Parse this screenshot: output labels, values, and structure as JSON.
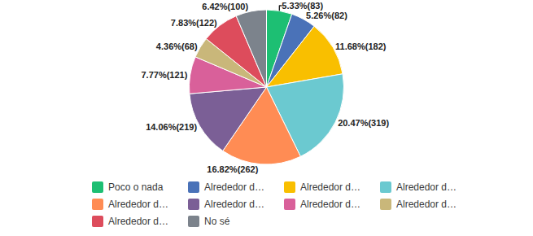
{
  "chart_data": {
    "type": "pie",
    "categories": [
      "Poco o nada",
      "Alrededor d…",
      "Alrededor d…",
      "Alrededor d…",
      "Alrededor d…",
      "Alrededor d…",
      "Alrededor d…",
      "Alrededor d…",
      "Alrededor d…",
      "No sé"
    ],
    "values": [
      5.33,
      5.26,
      11.68,
      20.47,
      16.82,
      14.06,
      7.77,
      4.36,
      7.83,
      6.42
    ],
    "value_labels": [
      "5.33%(83)",
      "5.26%(82)",
      "11.68%(182)",
      "20.47%(319)",
      "16.82%(262)",
      "14.06%(219)",
      "7.77%(121)",
      "4.36%(68)",
      "7.83%(122)",
      "6.42%(100)"
    ],
    "colors": [
      "#1dbf73",
      "#4a72b8",
      "#f9bf00",
      "#6bc9d0",
      "#ff8c54",
      "#7b5f96",
      "#d9609a",
      "#c9b77a",
      "#dd4c5c",
      "#7c838c"
    ],
    "data_labels": true,
    "legend": "bottom"
  }
}
